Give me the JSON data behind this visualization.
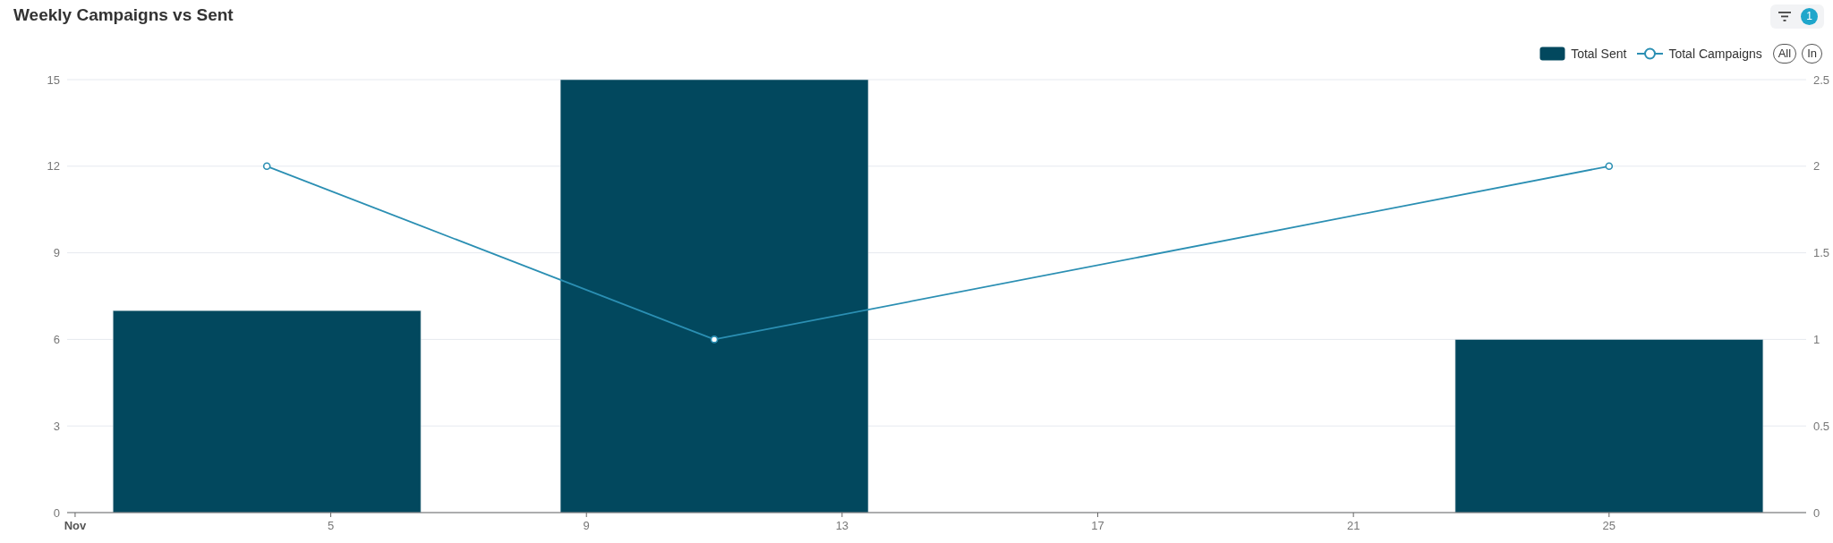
{
  "chart_data": {
    "type": "bar",
    "title": "Weekly Campaigns vs Sent",
    "x": [
      "--11-04",
      "--11-11",
      "--11-25"
    ],
    "xlim": [
      "--10-31T21:00",
      "--11-28T02:00"
    ],
    "xticks": [
      {
        "value": "--11-01",
        "label": "Nov"
      },
      {
        "value": "--11-05",
        "label": "5"
      },
      {
        "value": "--11-09",
        "label": "9"
      },
      {
        "value": "--11-13",
        "label": "13"
      },
      {
        "value": "--11-17",
        "label": "17"
      },
      {
        "value": "--11-21",
        "label": "21"
      },
      {
        "value": "--11-25",
        "label": "25"
      }
    ],
    "ylim": [
      0,
      15
    ],
    "yticks": [
      0,
      3,
      6,
      9,
      12,
      15
    ],
    "y2lim": [
      0,
      2.5
    ],
    "y2ticks": [
      0,
      0.5,
      1,
      1.5,
      2,
      2.5
    ],
    "series": [
      {
        "name": "Total Sent",
        "color": "#02485e",
        "values": [
          7,
          15,
          6
        ]
      },
      {
        "name": "Total Campaigns",
        "type": "line",
        "axis": "y2",
        "color": "#2b8fb3",
        "values": [
          2,
          1,
          2
        ]
      }
    ],
    "grid": "y",
    "legend": "top right",
    "marker": "circle",
    "annotations": [
      "1",
      "All",
      "In"
    ]
  }
}
